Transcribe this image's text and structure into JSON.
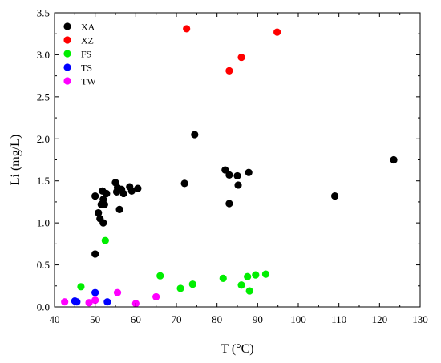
{
  "chart_data": {
    "type": "scatter",
    "title": "",
    "xlabel": "T (°C)",
    "ylabel": "Li (mg/L)",
    "xlim": [
      40,
      130
    ],
    "ylim": [
      0.0,
      3.5
    ],
    "xticks": [
      "40",
      "50",
      "60",
      "70",
      "80",
      "90",
      "100",
      "110",
      "120",
      "130"
    ],
    "yticks": [
      "0.0",
      "0.5",
      "1.0",
      "1.5",
      "2.0",
      "2.5",
      "3.0",
      "3.5"
    ],
    "grid": false,
    "legend_position": "top-left",
    "series": [
      {
        "name": "XA",
        "color": "#000000",
        "points": [
          [
            50.0,
            1.32
          ],
          [
            50.0,
            0.63
          ],
          [
            50.8,
            1.12
          ],
          [
            51.2,
            1.05
          ],
          [
            51.5,
            1.22
          ],
          [
            51.8,
            1.38
          ],
          [
            52.0,
            1.28
          ],
          [
            52.0,
            1.0
          ],
          [
            52.3,
            1.22
          ],
          [
            52.8,
            1.35
          ],
          [
            55.0,
            1.48
          ],
          [
            55.3,
            1.37
          ],
          [
            55.5,
            1.42
          ],
          [
            56.0,
            1.16
          ],
          [
            56.5,
            1.4
          ],
          [
            57.0,
            1.35
          ],
          [
            58.5,
            1.43
          ],
          [
            59.0,
            1.38
          ],
          [
            60.5,
            1.41
          ],
          [
            72.0,
            1.47
          ],
          [
            74.5,
            2.05
          ],
          [
            82.0,
            1.63
          ],
          [
            83.0,
            1.57
          ],
          [
            83.0,
            1.23
          ],
          [
            85.0,
            1.56
          ],
          [
            85.2,
            1.45
          ],
          [
            87.8,
            1.6
          ],
          [
            109.0,
            1.32
          ],
          [
            123.5,
            1.75
          ]
        ]
      },
      {
        "name": "XZ",
        "color": "#ff0000",
        "points": [
          [
            72.5,
            3.31
          ],
          [
            83.0,
            2.81
          ],
          [
            86.0,
            2.97
          ],
          [
            94.8,
            3.27
          ]
        ]
      },
      {
        "name": "FS",
        "color": "#00ee00",
        "points": [
          [
            46.5,
            0.24
          ],
          [
            52.5,
            0.79
          ],
          [
            66.0,
            0.37
          ],
          [
            71.0,
            0.22
          ],
          [
            74.0,
            0.27
          ],
          [
            81.5,
            0.34
          ],
          [
            86.0,
            0.26
          ],
          [
            87.5,
            0.36
          ],
          [
            88.0,
            0.19
          ],
          [
            89.5,
            0.38
          ],
          [
            92.0,
            0.39
          ]
        ]
      },
      {
        "name": "TS",
        "color": "#0000ff",
        "points": [
          [
            45.0,
            0.07
          ],
          [
            45.5,
            0.06
          ],
          [
            50.0,
            0.17
          ],
          [
            53.0,
            0.06
          ]
        ]
      },
      {
        "name": "TW",
        "color": "#ff00ff",
        "points": [
          [
            42.5,
            0.06
          ],
          [
            48.5,
            0.05
          ],
          [
            50.0,
            0.08
          ],
          [
            55.5,
            0.17
          ],
          [
            60.0,
            0.04
          ],
          [
            65.0,
            0.12
          ]
        ]
      }
    ]
  }
}
